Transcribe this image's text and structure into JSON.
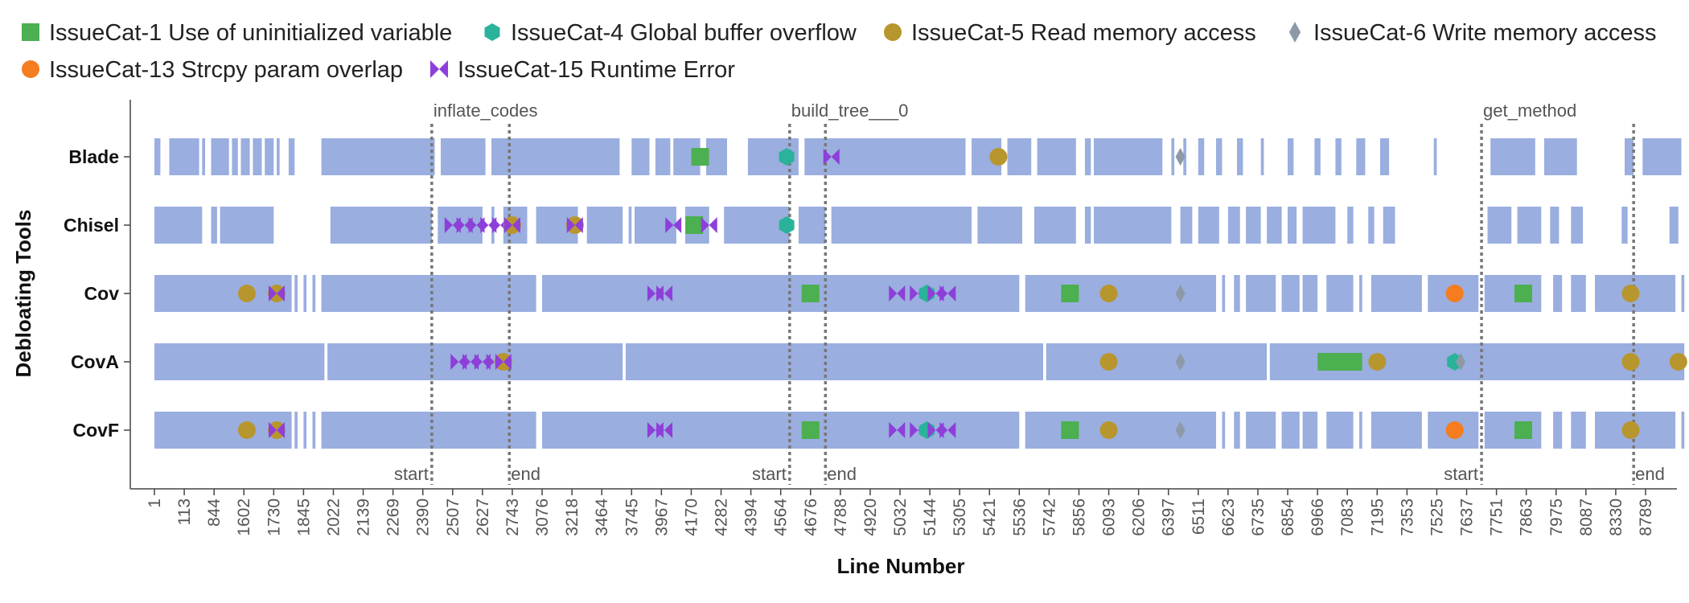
{
  "colors": {
    "coverage": "#9aaedf",
    "vline": "#777777",
    "axis": "#444444",
    "tick_label": "#555555"
  },
  "chart_data": {
    "type": "scatter",
    "title": "",
    "xlabel": "Line Number",
    "ylabel": "Debloating Tools",
    "x_ticks": [
      "1",
      "113",
      "844",
      "1602",
      "1730",
      "1845",
      "2022",
      "2139",
      "2269",
      "2390",
      "2507",
      "2627",
      "2743",
      "3076",
      "3218",
      "3464",
      "3745",
      "3967",
      "4170",
      "4282",
      "4394",
      "4564",
      "4676",
      "4788",
      "4920",
      "5032",
      "5144",
      "5305",
      "5421",
      "5536",
      "5742",
      "5856",
      "6093",
      "6206",
      "6397",
      "6511",
      "6623",
      "6735",
      "6854",
      "6966",
      "7083",
      "7195",
      "7353",
      "7525",
      "7637",
      "7751",
      "7863",
      "7975",
      "8087",
      "8330",
      "8789"
    ],
    "rows": [
      "Blade",
      "Chisel",
      "Cov",
      "CovA",
      "CovF"
    ],
    "legend": [
      {
        "name": "IssueCat-1 Use of uninitialized variable",
        "color": "#4caf50",
        "shape": "square"
      },
      {
        "name": "IssueCat-4 Global buffer overflow",
        "color": "#2ab39a",
        "shape": "hexagon"
      },
      {
        "name": "IssueCat-5 Read memory access",
        "color": "#b8962e",
        "shape": "circle"
      },
      {
        "name": "IssueCat-6 Write memory access",
        "color": "#8c9aa8",
        "shape": "diamond"
      },
      {
        "name": "IssueCat-13 Strcpy param overlap",
        "color": "#f57c1f",
        "shape": "circle"
      },
      {
        "name": "IssueCat-15 Runtime Error",
        "color": "#8e3fd9",
        "shape": "bowtie"
      }
    ],
    "function_regions": [
      {
        "name": "inflate_codes",
        "start_label": "start",
        "end_label": "end",
        "start_tick": 9.3,
        "end_tick": 11.9
      },
      {
        "name": "build_tree___0",
        "start_label": "start",
        "end_label": "end",
        "start_tick": 21.3,
        "end_tick": 22.5
      },
      {
        "name": "get_method",
        "start_label": "start",
        "end_label": "end",
        "start_tick": 44.5,
        "end_tick": 49.6
      }
    ],
    "coverage": {
      "Blade": [
        [
          0,
          0.2
        ],
        [
          0.5,
          1.5
        ],
        [
          1.6,
          1.7
        ],
        [
          1.9,
          2.5
        ],
        [
          2.6,
          2.8
        ],
        [
          2.9,
          3.2
        ],
        [
          3.3,
          3.6
        ],
        [
          3.7,
          4.0
        ],
        [
          4.1,
          4.2
        ],
        [
          4.5,
          4.7
        ],
        [
          5.6,
          9.4
        ],
        [
          9.6,
          11.1
        ],
        [
          11.3,
          15.6
        ],
        [
          16.0,
          16.6
        ],
        [
          16.8,
          17.3
        ],
        [
          17.4,
          18.3
        ],
        [
          18.5,
          19.2
        ],
        [
          19.9,
          21.6
        ],
        [
          21.8,
          27.2
        ],
        [
          27.4,
          28.4
        ],
        [
          28.6,
          29.4
        ],
        [
          29.6,
          30.9
        ],
        [
          31.2,
          31.4
        ],
        [
          31.5,
          33.8
        ],
        [
          34.1,
          34.2
        ],
        [
          34.5,
          34.6
        ],
        [
          35.0,
          35.2
        ],
        [
          35.6,
          35.8
        ],
        [
          36.3,
          36.5
        ],
        [
          37.1,
          37.2
        ],
        [
          38.0,
          38.2
        ],
        [
          38.9,
          39.1
        ],
        [
          39.6,
          39.8
        ],
        [
          40.3,
          40.6
        ],
        [
          41.1,
          41.4
        ],
        [
          42.9,
          43.0
        ],
        [
          44.8,
          46.3
        ],
        [
          46.6,
          47.7
        ],
        [
          49.3,
          49.6
        ],
        [
          49.9,
          51.2
        ]
      ],
      "Chisel": [
        [
          0,
          1.6
        ],
        [
          1.9,
          2.1
        ],
        [
          2.2,
          4.0
        ],
        [
          5.9,
          9.3
        ],
        [
          9.5,
          11.0
        ],
        [
          11.3,
          11.4
        ],
        [
          11.7,
          12.5
        ],
        [
          12.8,
          14.2
        ],
        [
          14.5,
          15.7
        ],
        [
          15.9,
          16.0
        ],
        [
          16.1,
          17.5
        ],
        [
          17.8,
          18.6
        ],
        [
          19.1,
          21.3
        ],
        [
          21.6,
          22.5
        ],
        [
          22.7,
          27.4
        ],
        [
          27.6,
          29.1
        ],
        [
          29.5,
          30.9
        ],
        [
          31.2,
          31.4
        ],
        [
          31.5,
          34.1
        ],
        [
          34.4,
          34.8
        ],
        [
          35.0,
          35.7
        ],
        [
          36.0,
          36.4
        ],
        [
          36.6,
          37.1
        ],
        [
          37.3,
          37.8
        ],
        [
          38.0,
          38.3
        ],
        [
          38.5,
          39.6
        ],
        [
          40.0,
          40.2
        ],
        [
          40.7,
          40.9
        ],
        [
          41.2,
          41.6
        ],
        [
          44.7,
          45.5
        ],
        [
          45.7,
          46.5
        ],
        [
          46.8,
          47.1
        ],
        [
          47.5,
          47.9
        ],
        [
          49.2,
          49.4
        ],
        [
          50.8,
          51.1
        ]
      ],
      "Cov": [
        [
          0,
          4.6
        ],
        [
          4.7,
          4.8
        ],
        [
          5.0,
          5.1
        ],
        [
          5.3,
          5.4
        ],
        [
          5.6,
          12.8
        ],
        [
          13.0,
          29.0
        ],
        [
          29.2,
          35.6
        ],
        [
          35.8,
          35.9
        ],
        [
          36.2,
          36.4
        ],
        [
          36.6,
          37.6
        ],
        [
          37.8,
          38.4
        ],
        [
          38.5,
          39.0
        ],
        [
          39.3,
          40.2
        ],
        [
          40.4,
          40.5
        ],
        [
          40.8,
          42.5
        ],
        [
          42.7,
          44.4
        ],
        [
          44.6,
          46.5
        ],
        [
          46.9,
          47.2
        ],
        [
          47.5,
          48.0
        ],
        [
          48.3,
          51.0
        ],
        [
          51.2,
          51.3
        ]
      ],
      "CovA": [
        [
          0,
          5.7
        ],
        [
          5.8,
          15.7
        ],
        [
          15.8,
          29.8
        ],
        [
          29.9,
          37.3
        ],
        [
          37.4,
          51.3
        ]
      ],
      "CovF": [
        [
          0,
          4.6
        ],
        [
          4.7,
          4.8
        ],
        [
          5.0,
          5.1
        ],
        [
          5.3,
          5.4
        ],
        [
          5.6,
          12.8
        ],
        [
          13.0,
          29.0
        ],
        [
          29.2,
          35.6
        ],
        [
          35.8,
          35.9
        ],
        [
          36.2,
          36.4
        ],
        [
          36.6,
          37.6
        ],
        [
          37.8,
          38.4
        ],
        [
          38.5,
          39.0
        ],
        [
          39.3,
          40.2
        ],
        [
          40.4,
          40.5
        ],
        [
          40.8,
          42.5
        ],
        [
          42.7,
          44.4
        ],
        [
          44.6,
          46.5
        ],
        [
          46.9,
          47.2
        ],
        [
          47.5,
          48.0
        ],
        [
          48.3,
          51.0
        ],
        [
          51.2,
          51.3
        ]
      ]
    },
    "points": [
      {
        "row": "Blade",
        "tick": 18.3,
        "cat": 15
      },
      {
        "row": "Blade",
        "tick": 18.3,
        "cat": 1
      },
      {
        "row": "Blade",
        "tick": 21.2,
        "cat": 4
      },
      {
        "row": "Blade",
        "tick": 22.7,
        "cat": 15
      },
      {
        "row": "Blade",
        "tick": 28.3,
        "cat": 5
      },
      {
        "row": "Blade",
        "tick": 34.4,
        "cat": 6
      },
      {
        "row": "Chisel",
        "tick": 10.0,
        "cat": 15
      },
      {
        "row": "Chisel",
        "tick": 10.4,
        "cat": 15
      },
      {
        "row": "Chisel",
        "tick": 10.8,
        "cat": 15
      },
      {
        "row": "Chisel",
        "tick": 11.2,
        "cat": 15
      },
      {
        "row": "Chisel",
        "tick": 11.6,
        "cat": 15
      },
      {
        "row": "Chisel",
        "tick": 12.0,
        "cat": 5
      },
      {
        "row": "Chisel",
        "tick": 12.0,
        "cat": 15
      },
      {
        "row": "Chisel",
        "tick": 14.1,
        "cat": 5
      },
      {
        "row": "Chisel",
        "tick": 14.1,
        "cat": 15
      },
      {
        "row": "Chisel",
        "tick": 17.4,
        "cat": 15
      },
      {
        "row": "Chisel",
        "tick": 18.1,
        "cat": 1
      },
      {
        "row": "Chisel",
        "tick": 18.6,
        "cat": 15
      },
      {
        "row": "Chisel",
        "tick": 21.2,
        "cat": 4
      },
      {
        "row": "Cov",
        "tick": 3.1,
        "cat": 5
      },
      {
        "row": "Cov",
        "tick": 4.1,
        "cat": 5
      },
      {
        "row": "Cov",
        "tick": 4.1,
        "cat": 15
      },
      {
        "row": "Cov",
        "tick": 16.8,
        "cat": 15
      },
      {
        "row": "Cov",
        "tick": 17.1,
        "cat": 15
      },
      {
        "row": "Cov",
        "tick": 22.0,
        "cat": 1
      },
      {
        "row": "Cov",
        "tick": 24.9,
        "cat": 15
      },
      {
        "row": "Cov",
        "tick": 25.6,
        "cat": 15
      },
      {
        "row": "Cov",
        "tick": 25.9,
        "cat": 4
      },
      {
        "row": "Cov",
        "tick": 26.2,
        "cat": 15
      },
      {
        "row": "Cov",
        "tick": 26.6,
        "cat": 15
      },
      {
        "row": "Cov",
        "tick": 30.7,
        "cat": 1
      },
      {
        "row": "Cov",
        "tick": 32.0,
        "cat": 5
      },
      {
        "row": "Cov",
        "tick": 34.4,
        "cat": 6
      },
      {
        "row": "Cov",
        "tick": 43.6,
        "cat": 13
      },
      {
        "row": "Cov",
        "tick": 45.9,
        "cat": 1
      },
      {
        "row": "Cov",
        "tick": 49.5,
        "cat": 5
      },
      {
        "row": "CovA",
        "tick": 10.2,
        "cat": 15
      },
      {
        "row": "CovA",
        "tick": 10.6,
        "cat": 15
      },
      {
        "row": "CovA",
        "tick": 11.0,
        "cat": 15
      },
      {
        "row": "CovA",
        "tick": 11.4,
        "cat": 15
      },
      {
        "row": "CovA",
        "tick": 11.7,
        "cat": 5
      },
      {
        "row": "CovA",
        "tick": 11.7,
        "cat": 15
      },
      {
        "row": "CovA",
        "tick": 32.0,
        "cat": 5
      },
      {
        "row": "CovA",
        "tick": 34.4,
        "cat": 6
      },
      {
        "row": "CovA",
        "tick": 39.3,
        "cat": 1
      },
      {
        "row": "CovA",
        "tick": 39.8,
        "cat": 1
      },
      {
        "row": "CovA",
        "tick": 40.2,
        "cat": 1
      },
      {
        "row": "CovA",
        "tick": 41.0,
        "cat": 5
      },
      {
        "row": "CovA",
        "tick": 43.6,
        "cat": 4
      },
      {
        "row": "CovA",
        "tick": 43.8,
        "cat": 6
      },
      {
        "row": "CovA",
        "tick": 49.5,
        "cat": 5
      },
      {
        "row": "CovA",
        "tick": 51.1,
        "cat": 5
      },
      {
        "row": "CovF",
        "tick": 3.1,
        "cat": 5
      },
      {
        "row": "CovF",
        "tick": 4.1,
        "cat": 5
      },
      {
        "row": "CovF",
        "tick": 4.1,
        "cat": 15
      },
      {
        "row": "CovF",
        "tick": 16.8,
        "cat": 15
      },
      {
        "row": "CovF",
        "tick": 17.1,
        "cat": 15
      },
      {
        "row": "CovF",
        "tick": 22.0,
        "cat": 1
      },
      {
        "row": "CovF",
        "tick": 24.9,
        "cat": 15
      },
      {
        "row": "CovF",
        "tick": 25.6,
        "cat": 15
      },
      {
        "row": "CovF",
        "tick": 25.9,
        "cat": 4
      },
      {
        "row": "CovF",
        "tick": 26.2,
        "cat": 15
      },
      {
        "row": "CovF",
        "tick": 26.6,
        "cat": 15
      },
      {
        "row": "CovF",
        "tick": 30.7,
        "cat": 1
      },
      {
        "row": "CovF",
        "tick": 32.0,
        "cat": 5
      },
      {
        "row": "CovF",
        "tick": 34.4,
        "cat": 6
      },
      {
        "row": "CovF",
        "tick": 43.6,
        "cat": 13
      },
      {
        "row": "CovF",
        "tick": 45.9,
        "cat": 1
      },
      {
        "row": "CovF",
        "tick": 49.5,
        "cat": 5
      }
    ]
  }
}
